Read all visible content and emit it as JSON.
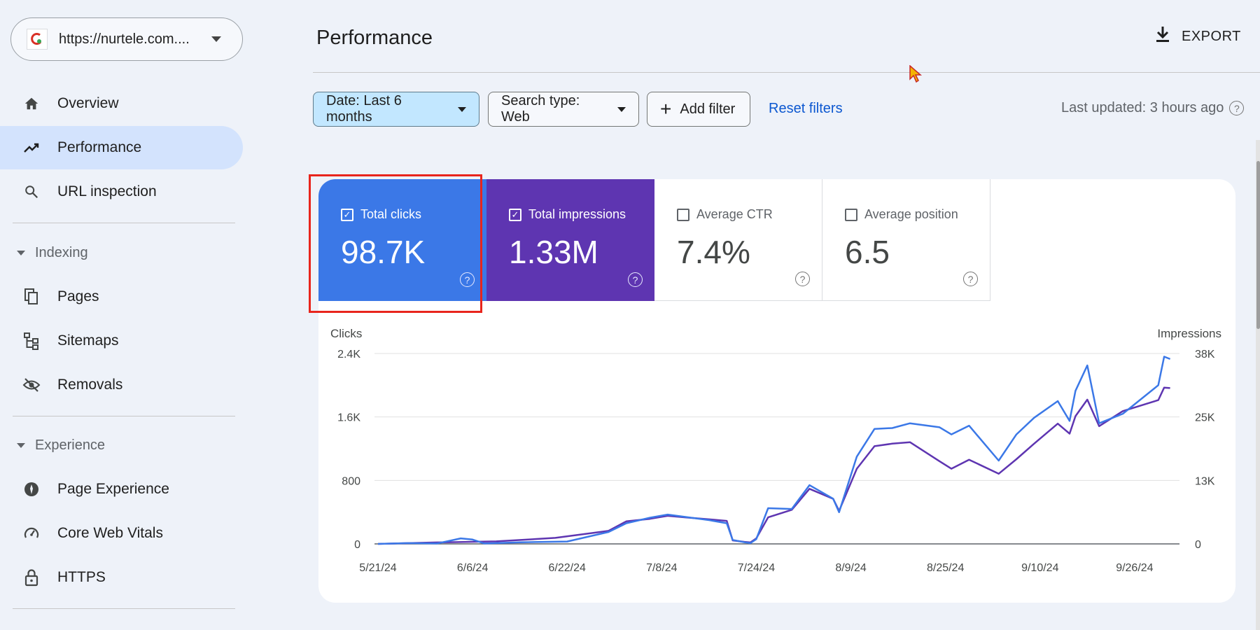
{
  "property": {
    "url": "https://nurtele.com...."
  },
  "sidebar": {
    "items": [
      {
        "label": "Overview",
        "icon": "home-icon"
      },
      {
        "label": "Performance",
        "icon": "trending-up-icon",
        "active": true
      },
      {
        "label": "URL inspection",
        "icon": "search-icon"
      }
    ],
    "indexing": {
      "label": "Indexing",
      "items": [
        {
          "label": "Pages",
          "icon": "pages-icon"
        },
        {
          "label": "Sitemaps",
          "icon": "sitemap-icon"
        },
        {
          "label": "Removals",
          "icon": "eye-off-icon"
        }
      ]
    },
    "experience": {
      "label": "Experience",
      "items": [
        {
          "label": "Page Experience",
          "icon": "page-experience-icon"
        },
        {
          "label": "Core Web Vitals",
          "icon": "gauge-icon"
        },
        {
          "label": "HTTPS",
          "icon": "lock-icon"
        }
      ]
    }
  },
  "header": {
    "title": "Performance",
    "export_label": "EXPORT"
  },
  "filters": {
    "date": "Date: Last 6 months",
    "search_type": "Search type: Web",
    "add_filter": "Add filter",
    "reset": "Reset filters",
    "last_updated": "Last updated: 3 hours ago"
  },
  "metrics": {
    "clicks": {
      "label": "Total clicks",
      "value": "98.7K",
      "checked": true
    },
    "impressions": {
      "label": "Total impressions",
      "value": "1.33M",
      "checked": true
    },
    "ctr": {
      "label": "Average CTR",
      "value": "7.4%",
      "checked": false
    },
    "position": {
      "label": "Average position",
      "value": "6.5",
      "checked": false
    }
  },
  "colors": {
    "clicks": "#3b78e7",
    "impressions": "#5e35b1",
    "active_nav": "#d3e3fd",
    "link": "#0b57d0"
  },
  "chart_data": {
    "type": "line",
    "ylabel_left": "Clicks",
    "ylabel_right": "Impressions",
    "yticks_left": [
      "2.4K",
      "1.6K",
      "800",
      "0"
    ],
    "yticks_right": [
      "38K",
      "25K",
      "13K",
      "0"
    ],
    "ylim_left": [
      0,
      2400
    ],
    "ylim_right": [
      0,
      38000
    ],
    "x_ticks": [
      "5/21/24",
      "6/6/24",
      "6/22/24",
      "7/8/24",
      "7/24/24",
      "8/9/24",
      "8/25/24",
      "9/10/24",
      "9/26/24"
    ],
    "x_start": "2024-05-21",
    "x_end": "2024-10-03",
    "series": [
      {
        "name": "Total clicks",
        "axis": "left",
        "color": "#3b78e7",
        "x": [
          "2024-05-21",
          "2024-05-26",
          "2024-05-31",
          "2024-06-04",
          "2024-06-06",
          "2024-06-08",
          "2024-06-14",
          "2024-06-22",
          "2024-06-29",
          "2024-07-02",
          "2024-07-06",
          "2024-07-09",
          "2024-07-12",
          "2024-07-16",
          "2024-07-19",
          "2024-07-20",
          "2024-07-22",
          "2024-07-23",
          "2024-07-24",
          "2024-07-26",
          "2024-07-30",
          "2024-08-02",
          "2024-08-06",
          "2024-08-07",
          "2024-08-10",
          "2024-08-13",
          "2024-08-16",
          "2024-08-19",
          "2024-08-24",
          "2024-08-26",
          "2024-08-29",
          "2024-09-03",
          "2024-09-06",
          "2024-09-09",
          "2024-09-13",
          "2024-09-15",
          "2024-09-16",
          "2024-09-18",
          "2024-09-20",
          "2024-09-24",
          "2024-09-30",
          "2024-10-01",
          "2024-10-02"
        ],
        "y": [
          0,
          10,
          5,
          70,
          55,
          5,
          20,
          30,
          150,
          260,
          330,
          370,
          340,
          300,
          260,
          50,
          20,
          10,
          60,
          450,
          440,
          740,
          570,
          400,
          1100,
          1450,
          1460,
          1520,
          1470,
          1380,
          1490,
          1050,
          1380,
          1590,
          1800,
          1550,
          1930,
          2250,
          1520,
          1640,
          2000,
          2360,
          2330
        ]
      },
      {
        "name": "Total impressions",
        "axis": "right",
        "color": "#5e35b1",
        "x": [
          "2024-05-21",
          "2024-05-31",
          "2024-06-10",
          "2024-06-20",
          "2024-06-29",
          "2024-07-02",
          "2024-07-06",
          "2024-07-09",
          "2024-07-12",
          "2024-07-16",
          "2024-07-19",
          "2024-07-20",
          "2024-07-22",
          "2024-07-23",
          "2024-07-24",
          "2024-07-26",
          "2024-07-30",
          "2024-08-02",
          "2024-08-06",
          "2024-08-07",
          "2024-08-10",
          "2024-08-13",
          "2024-08-16",
          "2024-08-19",
          "2024-08-24",
          "2024-08-26",
          "2024-08-29",
          "2024-09-03",
          "2024-09-06",
          "2024-09-09",
          "2024-09-13",
          "2024-09-15",
          "2024-09-16",
          "2024-09-18",
          "2024-09-20",
          "2024-09-24",
          "2024-09-30",
          "2024-10-01",
          "2024-10-02"
        ],
        "y": [
          0,
          300,
          500,
          1200,
          2600,
          4500,
          5000,
          5600,
          5300,
          4900,
          4600,
          700,
          400,
          300,
          1100,
          5300,
          6800,
          11000,
          9000,
          6600,
          15000,
          19500,
          20000,
          20300,
          16500,
          15000,
          16800,
          14000,
          16900,
          20000,
          24000,
          22000,
          25500,
          28800,
          23500,
          26500,
          28700,
          31200,
          31100
        ]
      }
    ]
  }
}
